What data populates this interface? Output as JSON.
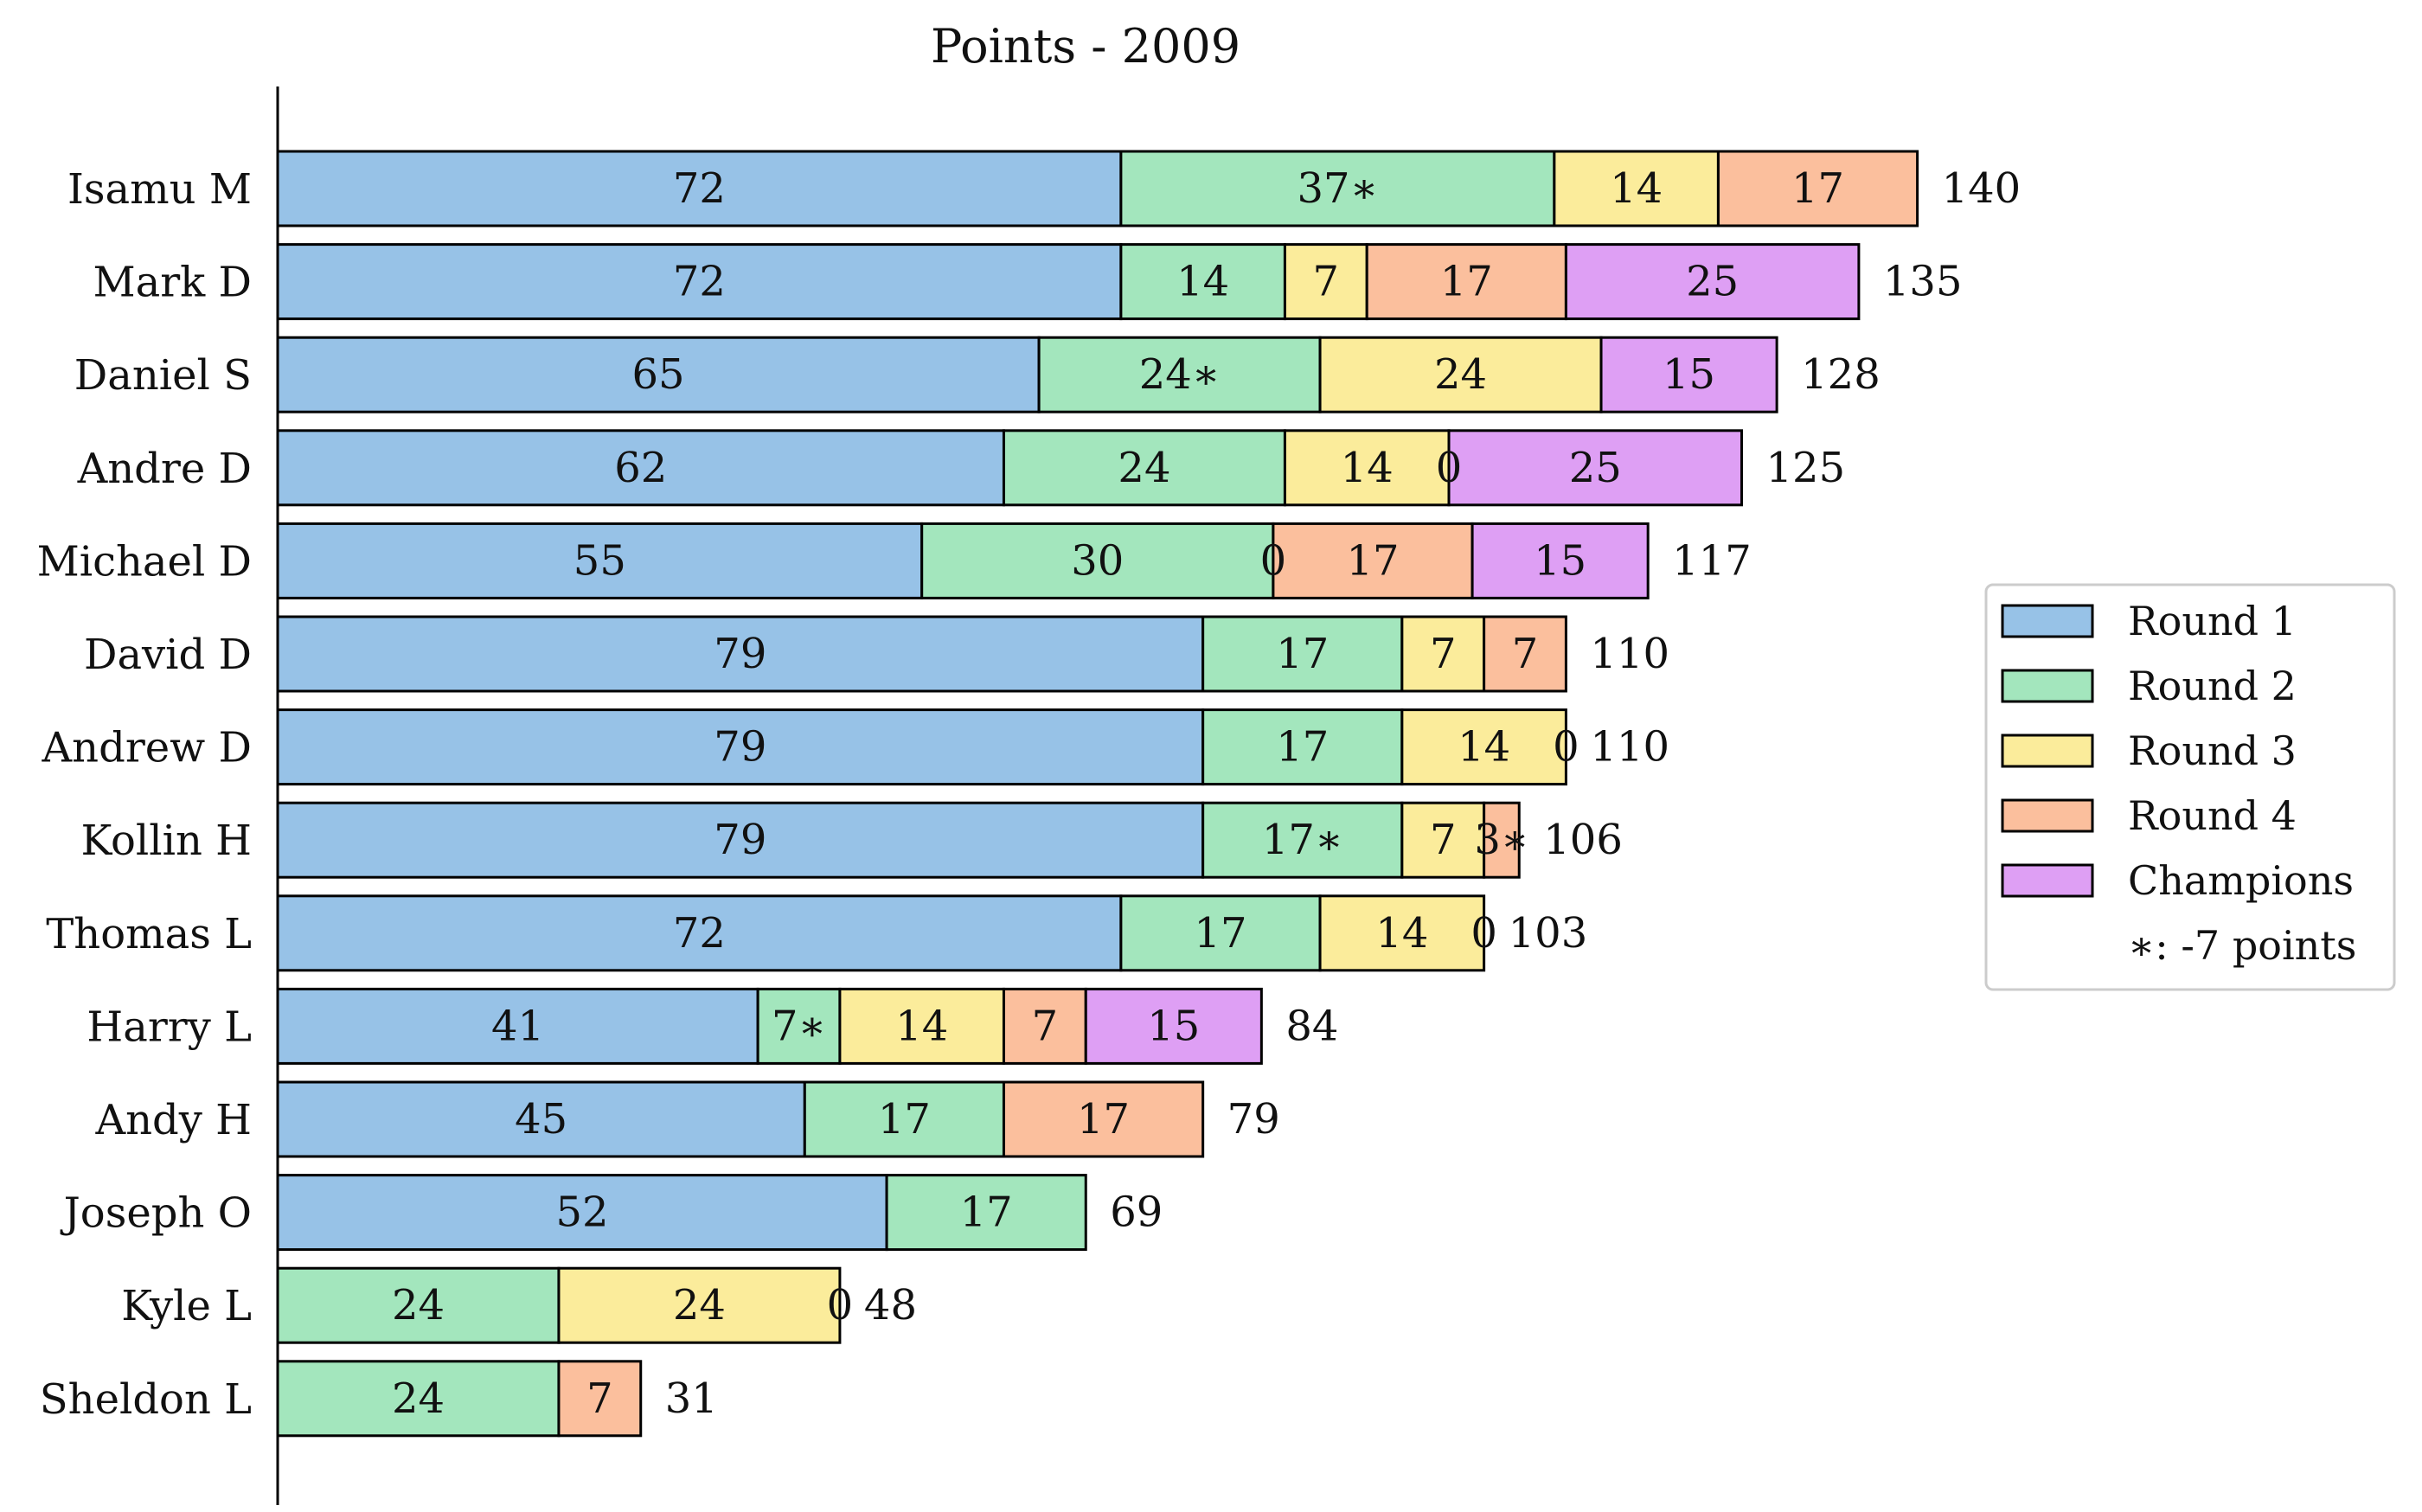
{
  "chart_data": {
    "type": "bar",
    "orientation": "horizontal",
    "stacked": true,
    "title": "Points - 2009",
    "xlabel": "",
    "ylabel": "",
    "xlim": [
      0,
      150
    ],
    "grid": false,
    "legend_position": "center-right",
    "categories": [
      "Isamu M",
      "Mark D",
      "Daniel S",
      "Andre D",
      "Michael D",
      "David D",
      "Andrew D",
      "Kollin H",
      "Thomas L",
      "Harry L",
      "Andy H",
      "Joseph O",
      "Kyle L",
      "Sheldon L"
    ],
    "series": [
      {
        "name": "Round 1",
        "color": "#97c2e7",
        "values": [
          72,
          72,
          65,
          62,
          55,
          79,
          79,
          79,
          72,
          41,
          45,
          52,
          null,
          null
        ],
        "labels": [
          "72",
          "72",
          "65",
          "62",
          "55",
          "79",
          "79",
          "79",
          "72",
          "41",
          "45",
          "52",
          "",
          ""
        ]
      },
      {
        "name": "Round 2",
        "color": "#a3e6bd",
        "values": [
          37,
          14,
          24,
          24,
          30,
          17,
          17,
          17,
          17,
          7,
          17,
          17,
          24,
          24
        ],
        "labels": [
          "37∗",
          "14",
          "24∗",
          "24",
          "30",
          "17",
          "17",
          "17∗",
          "17",
          "7∗",
          "17",
          "17",
          "24",
          "24"
        ]
      },
      {
        "name": "Round 3",
        "color": "#fbec9b",
        "values": [
          14,
          7,
          24,
          14,
          0,
          7,
          14,
          7,
          14,
          14,
          null,
          null,
          24,
          null
        ],
        "labels": [
          "14",
          "7",
          "24",
          "14",
          "0",
          "7",
          "14",
          "7",
          "14",
          "14",
          "",
          "",
          "24",
          ""
        ]
      },
      {
        "name": "Round 4",
        "color": "#fbbf9d",
        "values": [
          17,
          17,
          null,
          0,
          17,
          7,
          0,
          3,
          0,
          7,
          17,
          null,
          0,
          7
        ],
        "labels": [
          "17",
          "17",
          "",
          "0",
          "17",
          "7",
          "0",
          "3∗",
          "0",
          "7",
          "17",
          "",
          "0",
          "7"
        ]
      },
      {
        "name": "Champions",
        "color": "#de9ff4",
        "values": [
          null,
          25,
          15,
          25,
          15,
          null,
          null,
          null,
          null,
          15,
          null,
          null,
          null,
          null
        ],
        "labels": [
          "",
          "25",
          "15",
          "25",
          "15",
          "",
          "",
          "",
          "",
          "15",
          "",
          "",
          "",
          ""
        ]
      }
    ],
    "totals": [
      140,
      135,
      128,
      125,
      117,
      110,
      110,
      106,
      103,
      84,
      79,
      69,
      48,
      31
    ],
    "legend_note": "∗: -7 points"
  }
}
